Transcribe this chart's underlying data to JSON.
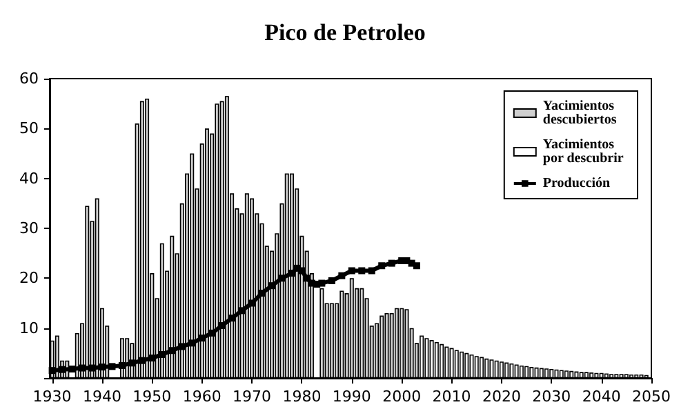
{
  "chart_data": {
    "type": "bar",
    "title": "Pico de Petroleo",
    "xlim": [
      1929.5,
      2050
    ],
    "xticks": [
      1930,
      1940,
      1950,
      1960,
      1970,
      1980,
      1990,
      2000,
      2010,
      2020,
      2030,
      2040,
      2050
    ],
    "ylim": [
      0,
      60
    ],
    "yticks": [
      {
        "value": 0,
        "label": null
      },
      10,
      20,
      30,
      40,
      50,
      60
    ],
    "grid": false,
    "legend": "top right",
    "series": [
      {
        "name": "Yacimientos descubiertos",
        "color": "#d0d0d0",
        "x": [
          1930,
          1931,
          1932,
          1933,
          1934,
          1935,
          1936,
          1937,
          1938,
          1939,
          1940,
          1941,
          1942,
          1943,
          1944,
          1945,
          1946,
          1947,
          1948,
          1949,
          1950,
          1951,
          1952,
          1953,
          1954,
          1955,
          1956,
          1957,
          1958,
          1959,
          1960,
          1961,
          1962,
          1963,
          1964,
          1965,
          1966,
          1967,
          1968,
          1969,
          1970,
          1971,
          1972,
          1973,
          1974,
          1975,
          1976,
          1977,
          1978,
          1979,
          1980,
          1981,
          1982,
          1983,
          1984,
          1985,
          1986,
          1987,
          1988,
          1989,
          1990,
          1991,
          1992,
          1993,
          1994,
          1995,
          1996,
          1997,
          1998,
          1999,
          2000,
          2001,
          2002,
          2003
        ],
        "values": [
          7.5,
          8.5,
          3.5,
          3.5,
          null,
          9,
          11,
          34.5,
          31.5,
          36,
          14,
          10.5,
          null,
          null,
          8,
          8,
          7,
          51,
          55.5,
          56,
          21,
          16,
          27,
          21.5,
          28.5,
          25,
          35,
          41,
          45,
          38,
          47,
          50,
          49,
          55,
          55.5,
          56.5,
          37,
          34,
          33,
          37,
          36,
          33,
          31,
          26.5,
          25.5,
          29,
          35,
          41,
          41,
          38,
          28.5,
          25.5,
          21,
          null,
          18,
          15,
          15,
          15,
          17.5,
          17,
          20,
          18,
          18,
          16,
          10.5,
          11,
          12.5,
          13,
          13,
          14,
          14,
          13.8,
          10,
          7
        ]
      },
      {
        "name": "Yacimientos por descubrir",
        "color": "#ffffff",
        "x": [
          2004,
          2005,
          2006,
          2007,
          2008,
          2009,
          2010,
          2011,
          2012,
          2013,
          2014,
          2015,
          2016,
          2017,
          2018,
          2019,
          2020,
          2021,
          2022,
          2023,
          2024,
          2025,
          2026,
          2027,
          2028,
          2029,
          2030,
          2031,
          2032,
          2033,
          2034,
          2035,
          2036,
          2037,
          2038,
          2039,
          2040,
          2041,
          2042,
          2043,
          2044,
          2045,
          2046,
          2047,
          2048,
          2049
        ],
        "values": [
          8.5,
          8,
          7.6,
          7.2,
          6.8,
          6.3,
          6,
          5.6,
          5.3,
          5,
          4.7,
          4.4,
          4.2,
          3.9,
          3.7,
          3.5,
          3.3,
          3.1,
          2.9,
          2.7,
          2.5,
          2.4,
          2.2,
          2.1,
          2,
          1.9,
          1.8,
          1.7,
          1.6,
          1.5,
          1.4,
          1.3,
          1.2,
          1.2,
          1.1,
          1,
          1,
          0.9,
          0.8,
          0.8,
          0.8,
          0.8,
          0.7,
          0.7,
          0.7,
          0.6
        ]
      },
      {
        "name": "Producción",
        "type": "line",
        "color": "#000000",
        "marker": "square",
        "x": [
          1930,
          1932,
          1934,
          1936,
          1938,
          1940,
          1942,
          1944,
          1946,
          1948,
          1950,
          1952,
          1954,
          1956,
          1958,
          1960,
          1962,
          1964,
          1966,
          1968,
          1970,
          1972,
          1974,
          1976,
          1978,
          1979,
          1980,
          1981,
          1982,
          1983,
          1984,
          1986,
          1988,
          1990,
          1992,
          1994,
          1996,
          1998,
          2000,
          2001,
          2002,
          2003
        ],
        "values": [
          1.5,
          1.7,
          1.8,
          2,
          2,
          2.2,
          2.3,
          2.5,
          3,
          3.5,
          4,
          4.7,
          5.5,
          6.3,
          7,
          8,
          9,
          10.5,
          12,
          13.5,
          15,
          17,
          18.5,
          20,
          21,
          22,
          21.5,
          20,
          19,
          18.8,
          19,
          19.5,
          20.5,
          21.5,
          21.5,
          21.5,
          22.5,
          23,
          23.5,
          23.5,
          23,
          22.5
        ]
      }
    ]
  }
}
